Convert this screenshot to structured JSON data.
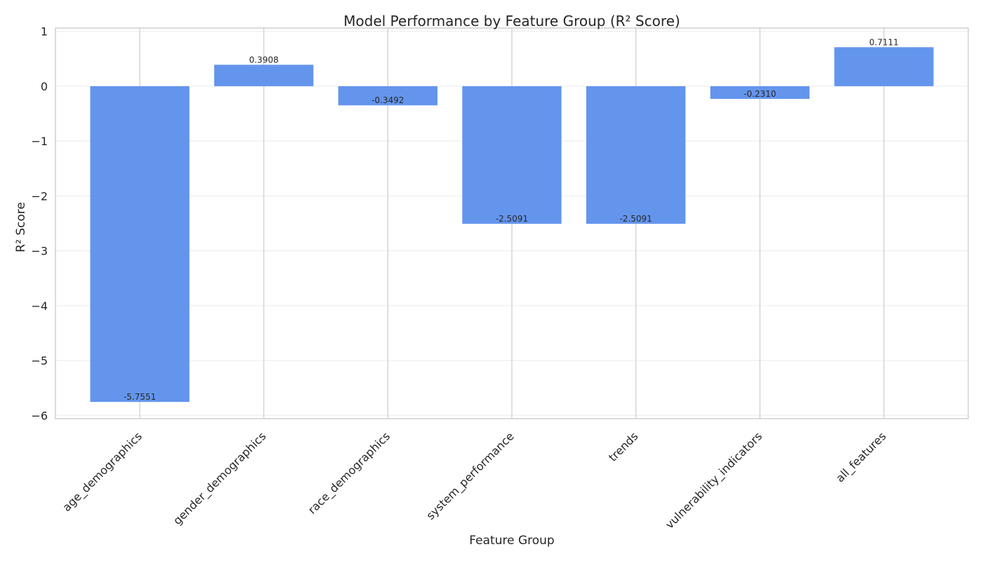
{
  "chart_data": {
    "type": "bar",
    "title": "Model Performance by Feature Group (R² Score)",
    "xlabel": "Feature Group",
    "ylabel": "R² Score",
    "categories": [
      "age_demographics",
      "gender_demographics",
      "race_demographics",
      "system_performance",
      "trends",
      "vulnerability_indicators",
      "all_features"
    ],
    "values": [
      -5.7551,
      0.3908,
      -0.3492,
      -2.5091,
      -2.5091,
      -0.231,
      0.7111
    ],
    "value_labels": [
      "-5.7551",
      "0.3908",
      "-0.3492",
      "-2.5091",
      "-2.5091",
      "-0.2310",
      "0.7111"
    ],
    "ylim": [
      -6.06,
      1.06
    ],
    "yticks": [
      1,
      0,
      -1,
      -2,
      -3,
      -4,
      -5,
      -6
    ],
    "ytick_labels": [
      "1",
      "0",
      "−1",
      "−2",
      "−3",
      "−4",
      "−5",
      "−6"
    ],
    "grid": true,
    "bar_color": "#6495ed"
  }
}
